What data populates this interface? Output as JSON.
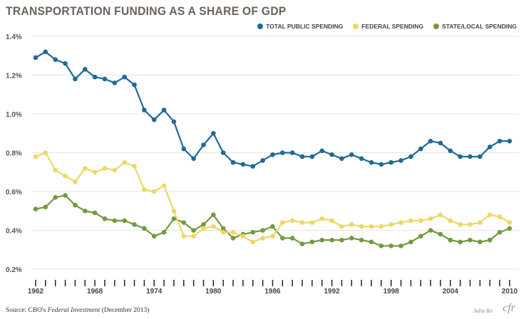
{
  "title": "TRANSPORTATION FUNDING AS A SHARE OF GDP",
  "source": {
    "prefix": "Source:  CBO's ",
    "italic": "Federal Investment",
    "suffix": " (December 2013)"
  },
  "signature": "Julia Ro",
  "logo": "cfr",
  "chart_data": {
    "type": "line",
    "title": "TRANSPORTATION FUNDING AS A SHARE OF GDP",
    "xlabel": "",
    "ylabel": "",
    "ylim": [
      0.2,
      1.4
    ],
    "yticks": [
      "0.2%",
      "0.4%",
      "0.6%",
      "0.8%",
      "1.0%",
      "1.2%",
      "1.4%"
    ],
    "xticks": [
      "1962",
      "1968",
      "1974",
      "1980",
      "1986",
      "1992",
      "1998",
      "2004",
      "2010"
    ],
    "grid": "horizontal",
    "legend": "top-right",
    "x": [
      1962,
      1963,
      1964,
      1965,
      1966,
      1967,
      1968,
      1969,
      1970,
      1971,
      1972,
      1973,
      1974,
      1975,
      1976,
      1977,
      1978,
      1979,
      1980,
      1981,
      1982,
      1983,
      1984,
      1985,
      1986,
      1987,
      1988,
      1989,
      1990,
      1991,
      1992,
      1993,
      1994,
      1995,
      1996,
      1997,
      1998,
      1999,
      2000,
      2001,
      2002,
      2003,
      2004,
      2005,
      2006,
      2007,
      2008,
      2009,
      2010
    ],
    "series": [
      {
        "name": "TOTAL PUBLIC SPENDING",
        "color": "#1f6a98",
        "values": [
          1.29,
          1.32,
          1.28,
          1.26,
          1.18,
          1.23,
          1.19,
          1.18,
          1.16,
          1.19,
          1.15,
          1.02,
          0.97,
          1.02,
          0.96,
          0.82,
          0.77,
          0.84,
          0.9,
          0.8,
          0.75,
          0.74,
          0.73,
          0.76,
          0.79,
          0.8,
          0.8,
          0.78,
          0.78,
          0.81,
          0.79,
          0.77,
          0.79,
          0.77,
          0.75,
          0.74,
          0.75,
          0.76,
          0.78,
          0.82,
          0.86,
          0.85,
          0.81,
          0.78,
          0.78,
          0.78,
          0.83,
          0.86,
          0.86
        ]
      },
      {
        "name": "FEDERAL SPENDING",
        "color": "#ecd865",
        "values": [
          0.78,
          0.8,
          0.71,
          0.68,
          0.65,
          0.72,
          0.7,
          0.72,
          0.71,
          0.75,
          0.73,
          0.61,
          0.6,
          0.63,
          0.5,
          0.37,
          0.37,
          0.41,
          0.42,
          0.39,
          0.39,
          0.37,
          0.34,
          0.36,
          0.37,
          0.44,
          0.45,
          0.44,
          0.44,
          0.46,
          0.45,
          0.42,
          0.43,
          0.42,
          0.42,
          0.42,
          0.43,
          0.44,
          0.45,
          0.45,
          0.46,
          0.48,
          0.45,
          0.43,
          0.43,
          0.44,
          0.48,
          0.47,
          0.44
        ]
      },
      {
        "name": "STATE/LOCAL SPENDING",
        "color": "#739a3f",
        "values": [
          0.51,
          0.52,
          0.57,
          0.58,
          0.53,
          0.5,
          0.49,
          0.46,
          0.45,
          0.45,
          0.43,
          0.41,
          0.37,
          0.39,
          0.46,
          0.44,
          0.4,
          0.43,
          0.48,
          0.41,
          0.36,
          0.38,
          0.39,
          0.4,
          0.42,
          0.36,
          0.36,
          0.33,
          0.34,
          0.35,
          0.35,
          0.35,
          0.36,
          0.35,
          0.34,
          0.32,
          0.32,
          0.32,
          0.34,
          0.37,
          0.4,
          0.38,
          0.35,
          0.34,
          0.35,
          0.34,
          0.35,
          0.39,
          0.41
        ]
      }
    ]
  }
}
